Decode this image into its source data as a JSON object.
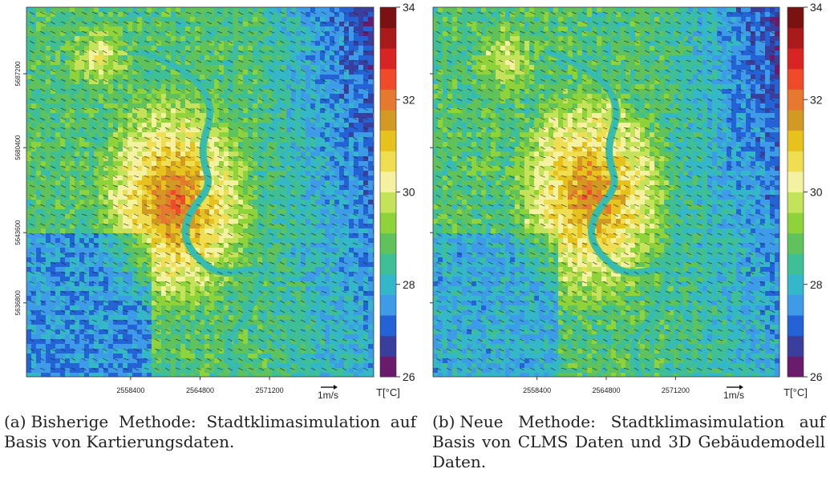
{
  "chart_data": [
    {
      "id": "a",
      "type": "heatmap",
      "title": "",
      "x_tick_labels": [
        "2558400",
        "2564800",
        "2571200"
      ],
      "y_tick_labels": [
        "5687200",
        "5680400",
        "5643600",
        "5636800"
      ],
      "colorbar": {
        "min": 26,
        "max": 34,
        "tick_labels": [
          "34",
          "32",
          "30",
          "28",
          "26"
        ],
        "unit_label": "T[°C]",
        "colors": [
          "#6a1b6b",
          "#3a3f9e",
          "#2463d6",
          "#3d9be8",
          "#33b7c9",
          "#3ebf95",
          "#5fc25a",
          "#8ed33a",
          "#c4e35a",
          "#f4f2a0",
          "#f0de52",
          "#e8c21c",
          "#d29a23",
          "#e6782f",
          "#ef4a2a",
          "#d92424",
          "#a91b1b",
          "#7b1212"
        ]
      },
      "wind_scale_label": "1m/s",
      "description_fields": "temperature field with wind vectors"
    },
    {
      "id": "b",
      "type": "heatmap",
      "title": "",
      "x_tick_labels": [
        "2558400",
        "2564800",
        "2571200"
      ],
      "colorbar": {
        "min": 26,
        "max": 34,
        "tick_labels": [
          "34",
          "32",
          "30",
          "28",
          "26"
        ],
        "unit_label": "T[°C]",
        "colors": [
          "#6a1b6b",
          "#3a3f9e",
          "#2463d6",
          "#3d9be8",
          "#33b7c9",
          "#3ebf95",
          "#5fc25a",
          "#8ed33a",
          "#c4e35a",
          "#f4f2a0",
          "#f0de52",
          "#e8c21c",
          "#d29a23",
          "#e6782f",
          "#ef4a2a",
          "#d92424",
          "#a91b1b",
          "#7b1212"
        ]
      },
      "wind_scale_label": "1m/s"
    }
  ],
  "captions": {
    "a_label": "(a)",
    "a_text": "Bisherige Methode: Stadtklimasimulation auf Basis von Kartierungsdaten.",
    "b_label": "(b)",
    "b_text": "Neue Methode: Stadtklimasimulation auf Basis von CLMS Daten und 3D Gebäudemodell Daten."
  }
}
